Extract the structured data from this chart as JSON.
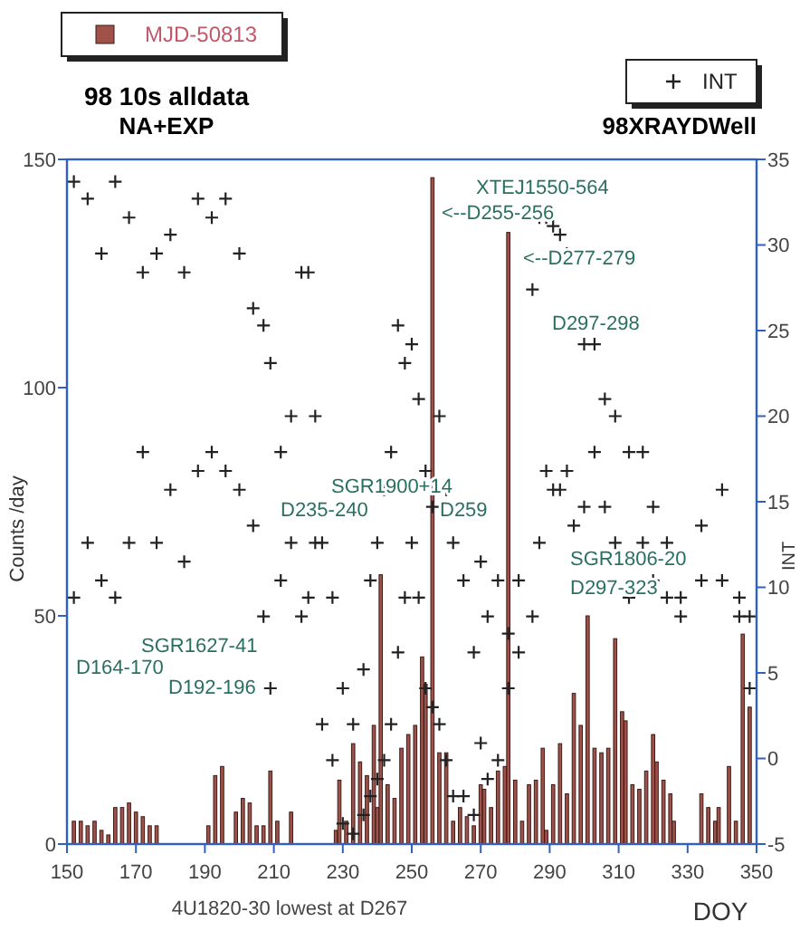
{
  "chart_data": {
    "type": "bar",
    "title": "98 10s alldata",
    "subtitle": "NA+EXP",
    "xlabel": "DOY",
    "ylabel": "Counts /day",
    "y2label": "INT",
    "xlim": [
      150,
      350
    ],
    "xticks": [
      150,
      170,
      190,
      210,
      230,
      250,
      270,
      290,
      310,
      330,
      350
    ],
    "ylim": [
      0,
      150
    ],
    "yticks": [
      0,
      50,
      100,
      150
    ],
    "y2lim": [
      -5,
      35
    ],
    "y2ticks": [
      -5,
      0,
      5,
      10,
      15,
      20,
      25,
      30,
      35
    ],
    "legend": "top",
    "grid": false,
    "marker": "cross",
    "series": [
      {
        "name": "MJD-50813",
        "color": "#a0524a",
        "x": [
          152,
          154,
          156,
          158,
          160,
          162,
          164,
          166,
          168,
          170,
          172,
          174,
          176,
          191,
          193,
          195,
          199,
          201,
          203,
          205,
          207,
          209,
          211,
          215,
          228,
          229,
          231,
          233,
          235,
          237,
          239,
          240,
          241,
          243,
          245,
          247,
          249,
          251,
          253,
          254,
          256,
          258,
          260,
          262,
          264,
          266,
          268,
          270,
          271,
          273,
          275,
          277,
          278,
          280,
          282,
          284,
          286,
          288,
          289,
          291,
          293,
          295,
          297,
          299,
          301,
          303,
          305,
          307,
          309,
          311,
          312,
          314,
          316,
          318,
          320,
          321,
          323,
          325,
          326,
          334,
          336,
          338,
          339,
          342,
          344,
          346,
          348
        ],
        "values": [
          5,
          5,
          4,
          5,
          3,
          2,
          8,
          8,
          9,
          7,
          6,
          4,
          4,
          4,
          15,
          17,
          7,
          10,
          9,
          4,
          4,
          16,
          5,
          7,
          3,
          14,
          5,
          22,
          18,
          15,
          26,
          8,
          59,
          13,
          10,
          21,
          24,
          26,
          41,
          35,
          146,
          20,
          20,
          5,
          8,
          6,
          4,
          13,
          12,
          8,
          16,
          17,
          134,
          14,
          5,
          13,
          14,
          21,
          3,
          13,
          22,
          11,
          33,
          26,
          50,
          21,
          20,
          21,
          45,
          29,
          27,
          13,
          12,
          16,
          24,
          18,
          14,
          11,
          5,
          11,
          8,
          5,
          8,
          17,
          5,
          46,
          30
        ]
      },
      {
        "name": "INT",
        "type": "scatter",
        "axis": "y2",
        "color": "#222222",
        "x": [
          152,
          152,
          156,
          156,
          160,
          160,
          164,
          164,
          168,
          168,
          172,
          172,
          176,
          176,
          180,
          180,
          184,
          184,
          188,
          188,
          192,
          192,
          196,
          196,
          200,
          200,
          204,
          204,
          207,
          207,
          209,
          209,
          212,
          212,
          215,
          215,
          218,
          218,
          220,
          220,
          222,
          222,
          224,
          224,
          227,
          227,
          230,
          230,
          233,
          233,
          236,
          236,
          238,
          238,
          240,
          240,
          242,
          242,
          244,
          244,
          246,
          246,
          248,
          248,
          250,
          250,
          252,
          252,
          254,
          254,
          256,
          256,
          258,
          258,
          260,
          260,
          262,
          262,
          265,
          265,
          268,
          268,
          270,
          270,
          272,
          272,
          275,
          275,
          278,
          278,
          281,
          281,
          285,
          285,
          287,
          287,
          289,
          289,
          291,
          291,
          293,
          293,
          295,
          295,
          297,
          297,
          300,
          300,
          303,
          303,
          306,
          306,
          309,
          309,
          313,
          313,
          317,
          317,
          320,
          320,
          324,
          324,
          328,
          328,
          334,
          334,
          340,
          340,
          345,
          345,
          348,
          348
        ],
        "values": [
          33.7,
          9.4,
          32.7,
          12.6,
          29.5,
          10.4,
          33.7,
          9.4,
          31.6,
          12.6,
          28.4,
          17.9,
          29.5,
          12.6,
          30.6,
          15.7,
          28.4,
          11.5,
          32.7,
          16.8,
          31.6,
          17.9,
          32.7,
          16.8,
          29.5,
          15.7,
          26.3,
          13.6,
          25.3,
          8.3,
          23.1,
          4.1,
          17.9,
          10.4,
          20.0,
          12.6,
          28.4,
          8.3,
          28.4,
          9.4,
          20.0,
          12.6,
          12.6,
          2.0,
          9.4,
          -0.1,
          4.1,
          -3.8,
          2.0,
          -4.4,
          5.2,
          -3.3,
          10.4,
          -2.2,
          12.6,
          -1.2,
          15.7,
          -0.1,
          17.9,
          2.0,
          25.3,
          6.2,
          23.1,
          9.4,
          24.2,
          12.6,
          21.0,
          9.4,
          16.8,
          4.1,
          14.7,
          3.0,
          20.0,
          2.0,
          15.7,
          -0.1,
          12.6,
          -2.2,
          10.4,
          -2.2,
          6.2,
          -3.3,
          11.5,
          0.9,
          8.3,
          -1.2,
          10.4,
          -0.1,
          7.3,
          4.1,
          10.4,
          6.2,
          27.4,
          8.3,
          31.6,
          12.6,
          31.6,
          16.8,
          31.1,
          15.7,
          30.6,
          15.7,
          29.5,
          16.8,
          25.3,
          13.6,
          24.2,
          14.7,
          24.2,
          17.9,
          21.0,
          14.7,
          20.0,
          12.6,
          17.9,
          9.4,
          17.9,
          12.6,
          14.7,
          10.4,
          12.6,
          9.4,
          9.4,
          8.3,
          13.6,
          10.4,
          15.7,
          10.4,
          9.4,
          8.3,
          8.3,
          4.1
        ]
      }
    ],
    "annotations": [
      "SGR1627-41",
      "D164-170",
      "D192-196",
      "SGR1900+14",
      "D235-240",
      "D259",
      "XTEJ1550-564",
      "<--D255-256",
      "<--D277-279",
      "D297-298",
      "SGR1806-20",
      "D297-323",
      "98XRAYDWell",
      "4U1820-30 lowest at D267"
    ]
  }
}
